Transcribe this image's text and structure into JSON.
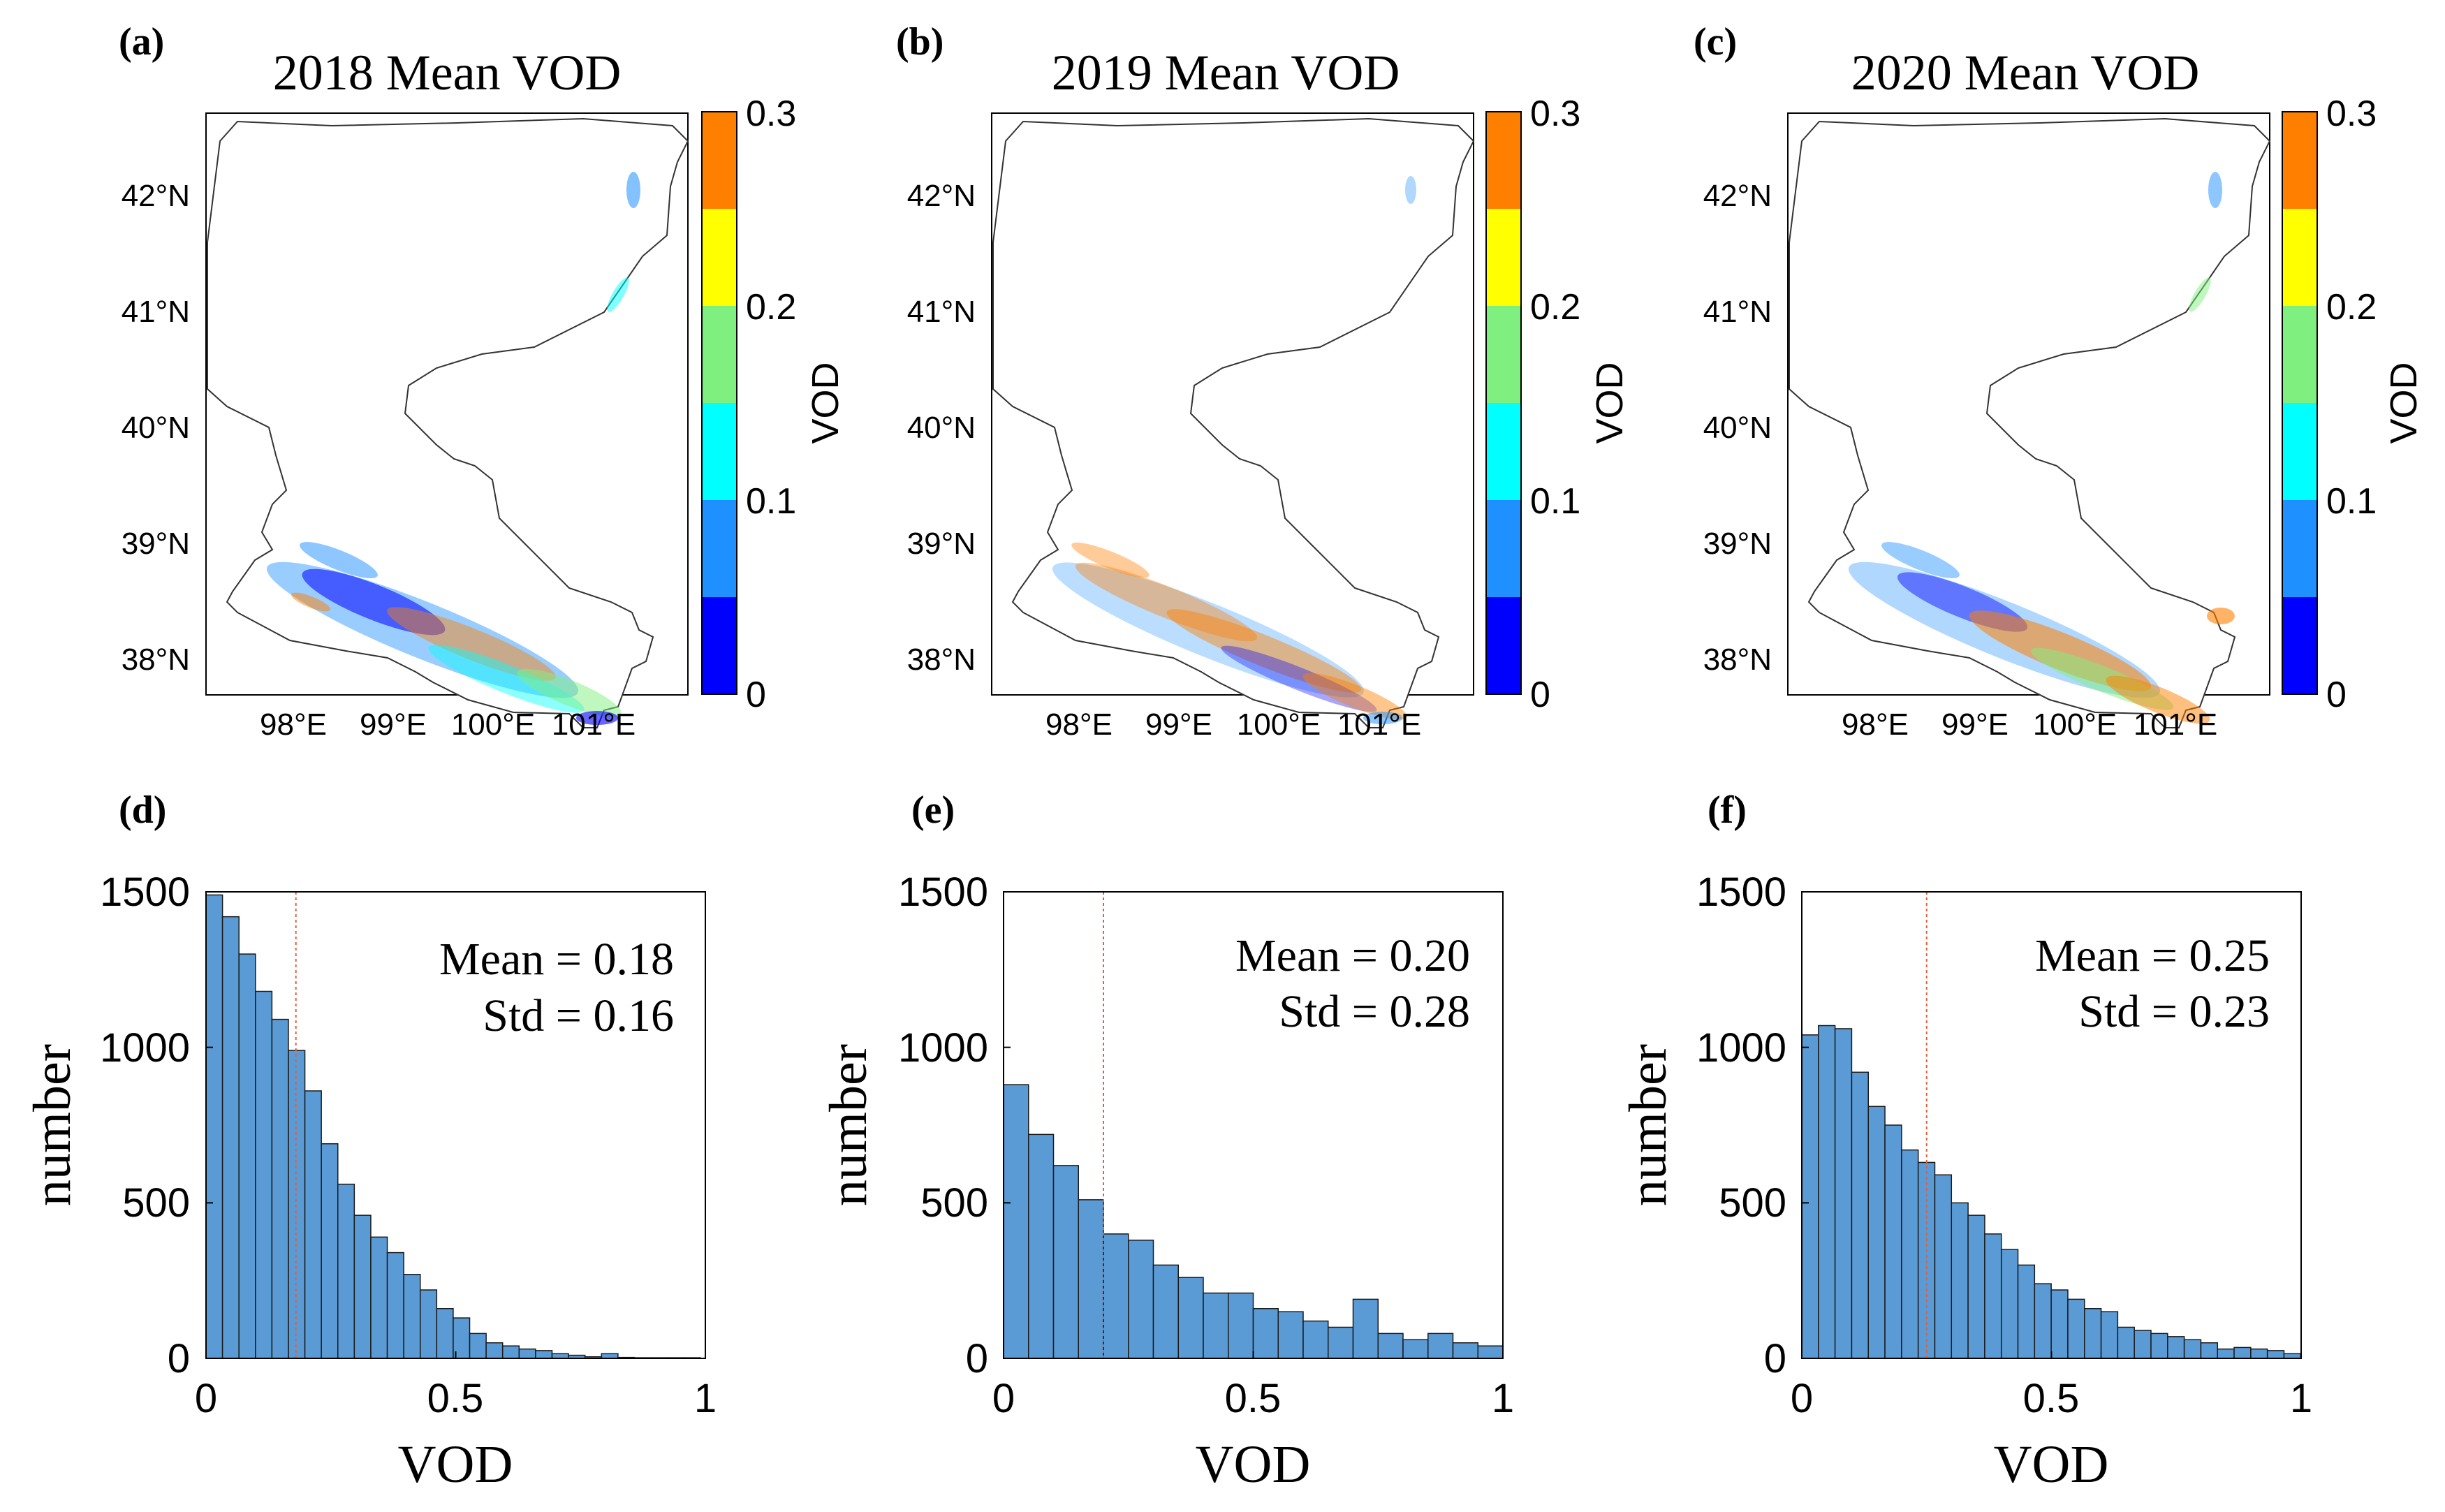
{
  "figure": {
    "maps": [
      {
        "panel": "(a)",
        "title": "2018 Mean VOD",
        "lat_labels": [
          "42°N",
          "41°N",
          "40°N",
          "39°N",
          "38°N"
        ],
        "lon_labels": [
          "98°E",
          "99°E",
          "100°E",
          "101°E"
        ],
        "colorbar": {
          "label": "VOD",
          "ticks": [
            "0",
            "0.1",
            "0.2",
            "0.3"
          ],
          "colors": [
            "#0000ff",
            "#1e90ff",
            "#00ffff",
            "#7fef7f",
            "#ffff00",
            "#ff8000"
          ]
        }
      },
      {
        "panel": "(b)",
        "title": "2019 Mean VOD",
        "lat_labels": [
          "42°N",
          "41°N",
          "40°N",
          "39°N",
          "38°N"
        ],
        "lon_labels": [
          "98°E",
          "99°E",
          "100°E",
          "101°E"
        ],
        "colorbar": {
          "label": "VOD",
          "ticks": [
            "0",
            "0.1",
            "0.2",
            "0.3"
          ],
          "colors": [
            "#0000ff",
            "#1e90ff",
            "#00ffff",
            "#7fef7f",
            "#ffff00",
            "#ff8000"
          ]
        }
      },
      {
        "panel": "(c)",
        "title": "2020 Mean VOD",
        "lat_labels": [
          "42°N",
          "41°N",
          "40°N",
          "39°N",
          "38°N"
        ],
        "lon_labels": [
          "98°E",
          "99°E",
          "100°E",
          "101°E"
        ],
        "colorbar": {
          "label": "VOD",
          "ticks": [
            "0",
            "0.1",
            "0.2",
            "0.3"
          ],
          "colors": [
            "#0000ff",
            "#1e90ff",
            "#00ffff",
            "#7fef7f",
            "#ffff00",
            "#ff8000"
          ]
        }
      }
    ]
  },
  "chart_data": [
    {
      "type": "bar",
      "panel": "(d)",
      "xlabel": "VOD",
      "ylabel": "number",
      "xlim": [
        0,
        1
      ],
      "ylim": [
        0,
        1500
      ],
      "xticks": [
        "0",
        "0.5",
        "1"
      ],
      "yticks": [
        "0",
        "500",
        "1000",
        "1500"
      ],
      "bin_width": 0.033,
      "bar_color": "#5b9bd5",
      "values": [
        1490,
        1420,
        1300,
        1180,
        1090,
        990,
        860,
        690,
        560,
        460,
        390,
        340,
        270,
        220,
        160,
        130,
        80,
        50,
        40,
        30,
        25,
        15,
        10,
        5,
        15,
        3,
        2,
        2,
        2,
        2
      ],
      "mean_line": 0.18,
      "stats": {
        "mean": "Mean = 0.18",
        "std": "Std = 0.16"
      }
    },
    {
      "type": "bar",
      "panel": "(e)",
      "xlabel": "VOD",
      "ylabel": "number",
      "xlim": [
        0,
        1
      ],
      "ylim": [
        0,
        1500
      ],
      "xticks": [
        "0",
        "0.5",
        "1"
      ],
      "yticks": [
        "0",
        "500",
        "1000",
        "1500"
      ],
      "bin_width": 0.05,
      "bar_color": "#5b9bd5",
      "values": [
        880,
        720,
        620,
        510,
        400,
        380,
        300,
        260,
        210,
        210,
        160,
        150,
        120,
        100,
        190,
        80,
        60,
        80,
        50,
        40
      ],
      "mean_line": 0.2,
      "stats": {
        "mean": "Mean = 0.20",
        "std": "Std = 0.28"
      }
    },
    {
      "type": "bar",
      "panel": "(f)",
      "xlabel": "VOD",
      "ylabel": "number",
      "xlim": [
        0,
        1
      ],
      "ylim": [
        0,
        1500
      ],
      "xticks": [
        "0",
        "0.5",
        "1"
      ],
      "yticks": [
        "0",
        "500",
        "1000",
        "1500"
      ],
      "bin_width": 0.0333,
      "bar_color": "#5b9bd5",
      "values": [
        1040,
        1070,
        1060,
        920,
        810,
        750,
        670,
        630,
        590,
        500,
        460,
        400,
        350,
        300,
        240,
        220,
        190,
        160,
        150,
        100,
        90,
        80,
        70,
        60,
        50,
        30,
        35,
        30,
        25,
        15
      ],
      "mean_line": 0.25,
      "stats": {
        "mean": "Mean = 0.25",
        "std": "Std = 0.23"
      }
    }
  ]
}
